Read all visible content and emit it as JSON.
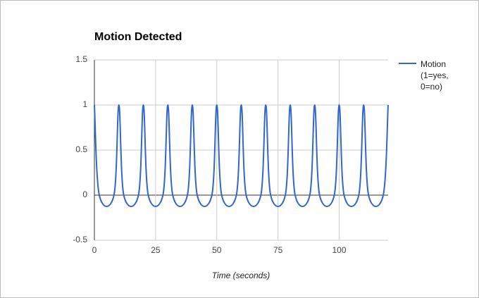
{
  "chart_data": {
    "type": "line",
    "title": "Motion Detected",
    "x_label": "Time (seconds)",
    "x": [
      0,
      2,
      8,
      10,
      12,
      18,
      20,
      22,
      28,
      30,
      32,
      38,
      40,
      42,
      48,
      50,
      52,
      58,
      60,
      62,
      68,
      70,
      72,
      78,
      80,
      82,
      88,
      90,
      92,
      98,
      100,
      102,
      108,
      110,
      112,
      118,
      120
    ],
    "series": [
      {
        "name": "Motion (1=yes, 0=no)",
        "color": "#3366cc",
        "values": [
          1,
          0,
          0,
          1,
          0,
          0,
          1,
          0,
          0,
          1,
          0,
          0,
          1,
          0,
          0,
          1,
          0,
          0,
          1,
          0,
          0,
          1,
          0,
          0,
          1,
          0,
          0,
          1,
          0,
          0,
          1,
          0,
          0,
          1,
          0,
          0,
          1
        ]
      }
    ],
    "xlim": [
      0,
      120
    ],
    "xticks": [
      0,
      25,
      50,
      75,
      100
    ],
    "ylim": [
      -0.5,
      1.5
    ],
    "yticks": [
      -0.5,
      0,
      0.5,
      1,
      1.5
    ],
    "grid": true,
    "legend": "right"
  }
}
